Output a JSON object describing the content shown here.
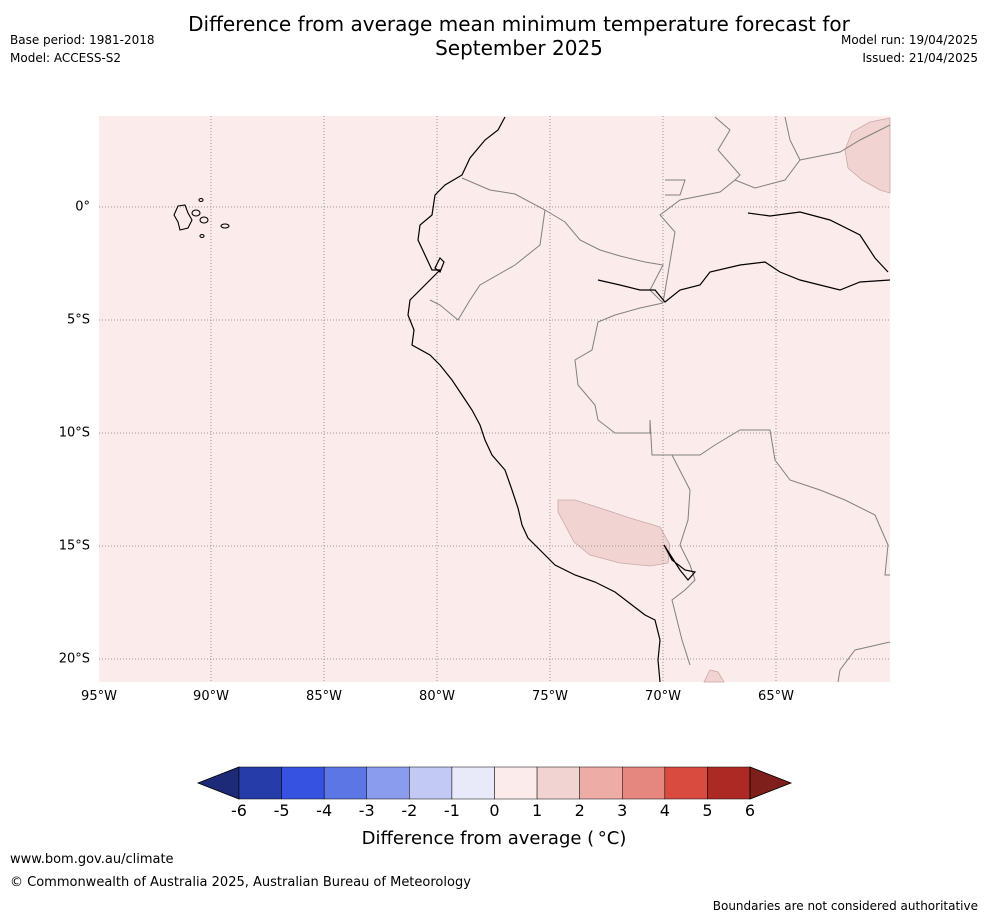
{
  "title_line1": "Difference from average mean minimum temperature forecast for",
  "title_line2": "September 2025",
  "base_period": "Base period: 1981-2018",
  "model": "Model: ACCESS-S2",
  "model_run": "Model run: 19/04/2025",
  "issued": "Issued: 21/04/2025",
  "latitude_labels": [
    "0°",
    "5°S",
    "10°S",
    "15°S",
    "20°S"
  ],
  "longitude_labels": [
    "95°W",
    "90°W",
    "85°W",
    "80°W",
    "75°W",
    "70°W",
    "65°W"
  ],
  "colorbar": {
    "title": "Difference from average ( °C)",
    "ticks": [
      "-6",
      "-5",
      "-4",
      "-3",
      "-2",
      "-1",
      "0",
      "1",
      "2",
      "3",
      "4",
      "5",
      "6"
    ],
    "colors": [
      "#1c2a78",
      "#263ca8",
      "#3552e0",
      "#5d76e6",
      "#8a9ced",
      "#c2c9f5",
      "#e8e9f9",
      "#fbebea",
      "#f1d4d1",
      "#eeaca7",
      "#e6877f",
      "#d94a3f",
      "#ad2a24",
      "#7e1f1b"
    ]
  },
  "map_colors": {
    "anomaly_0_1": "#fbebea",
    "anomaly_1_2": "#f1d4d1",
    "coastline": "#000000",
    "borders": "#808080",
    "gridlines": "#808080"
  },
  "footer_url": "www.bom.gov.au/climate",
  "footer_copyright": "© Commonwealth of Australia 2025, Australian Bureau of Meteorology",
  "footer_note": "Boundaries are not considered authoritative"
}
